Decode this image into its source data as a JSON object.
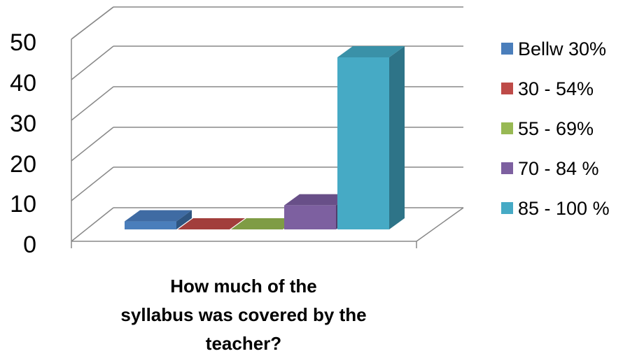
{
  "chart_data": {
    "type": "bar",
    "title_lines": [
      "How much of the",
      "syllabus was covered by the",
      "teacher?"
    ],
    "categories": [
      "Bellw 30%",
      "30 - 54%",
      "55 - 69%",
      "70 - 84 %",
      "85 - 100 %"
    ],
    "values": [
      2,
      0,
      0,
      6,
      43
    ],
    "y_ticks": [
      "0",
      "10",
      "20",
      "30",
      "40",
      "50"
    ],
    "ylim": [
      0,
      50
    ],
    "grid": true,
    "legend_position": "right",
    "colors": [
      "#4a7ebb",
      "#be4b48",
      "#98b954",
      "#7d60a0",
      "#46aac5"
    ],
    "top_colors": [
      "#3f6ba3",
      "#a23e3c",
      "#7f9c45",
      "#684f88",
      "#3a91a8"
    ],
    "side_colors": [
      "#2f5580",
      "#7f302e",
      "#657d37",
      "#513e6b",
      "#2e7488"
    ]
  }
}
